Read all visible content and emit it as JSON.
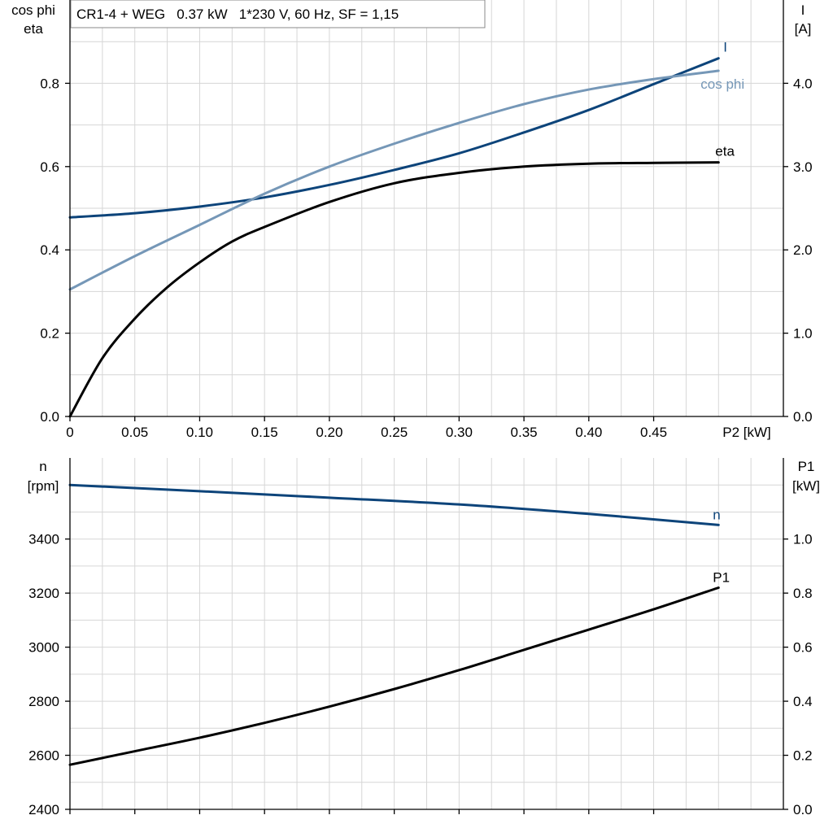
{
  "chart_data": [
    {
      "type": "line",
      "title": "CR1-4 + WEG   0.37 kW   1*230 V, 60 Hz, SF = 1,15",
      "xlabel": "P2 [kW]",
      "x_ticks": [
        "0",
        "0.05",
        "0.10",
        "0.15",
        "0.20",
        "0.25",
        "0.30",
        "0.35",
        "0.40",
        "0.45"
      ],
      "xlim": [
        0,
        0.55
      ],
      "y_left": {
        "label_line1": "cos phi",
        "label_line2": "eta",
        "lim": [
          0,
          1.0
        ],
        "ticks": [
          "0.0",
          "0.2",
          "0.4",
          "0.6",
          "0.8"
        ]
      },
      "y_right": {
        "label_line1": "I",
        "label_line2": "[A]",
        "lim": [
          0,
          5.0
        ],
        "ticks": [
          "0.0",
          "1.0",
          "2.0",
          "3.0",
          "4.0"
        ]
      },
      "grid": true,
      "series": [
        {
          "name": "I",
          "axis": "right",
          "color": "#0d447a",
          "x": [
            0,
            0.05,
            0.1,
            0.15,
            0.2,
            0.25,
            0.3,
            0.35,
            0.4,
            0.45,
            0.5
          ],
          "values": [
            2.39,
            2.44,
            2.52,
            2.63,
            2.78,
            2.96,
            3.16,
            3.41,
            3.68,
            3.99,
            4.3
          ]
        },
        {
          "name": "cos phi",
          "axis": "left",
          "color": "#7597b7",
          "x": [
            0,
            0.05,
            0.1,
            0.15,
            0.2,
            0.25,
            0.3,
            0.35,
            0.4,
            0.45,
            0.5
          ],
          "values": [
            0.305,
            0.385,
            0.46,
            0.535,
            0.6,
            0.655,
            0.705,
            0.75,
            0.785,
            0.81,
            0.83
          ]
        },
        {
          "name": "eta",
          "axis": "left",
          "color": "#000000",
          "x": [
            0,
            0.025,
            0.05,
            0.075,
            0.1,
            0.125,
            0.15,
            0.2,
            0.25,
            0.3,
            0.35,
            0.4,
            0.45,
            0.5
          ],
          "values": [
            0.0,
            0.14,
            0.235,
            0.31,
            0.37,
            0.42,
            0.455,
            0.515,
            0.56,
            0.585,
            0.6,
            0.607,
            0.609,
            0.61
          ]
        }
      ]
    },
    {
      "type": "line",
      "xlim": [
        0,
        0.55
      ],
      "y_left": {
        "label_line1": "n",
        "label_line2": "[rpm]",
        "lim": [
          2400,
          3700
        ],
        "ticks": [
          "2400",
          "2600",
          "2800",
          "3000",
          "3200",
          "3400"
        ]
      },
      "y_right": {
        "label_line1": "P1",
        "label_line2": "[kW]",
        "lim": [
          0,
          1.3
        ],
        "ticks": [
          "0.0",
          "0.2",
          "0.4",
          "0.6",
          "0.8",
          "1.0"
        ]
      },
      "grid": true,
      "series": [
        {
          "name": "n",
          "axis": "left",
          "color": "#0d447a",
          "x": [
            0,
            0.1,
            0.2,
            0.3,
            0.4,
            0.5
          ],
          "values": [
            3600,
            3577,
            3553,
            3528,
            3493,
            3452
          ]
        },
        {
          "name": "P1",
          "axis": "right",
          "color": "#000000",
          "x": [
            0,
            0.05,
            0.1,
            0.15,
            0.2,
            0.25,
            0.3,
            0.35,
            0.4,
            0.45,
            0.5
          ],
          "values": [
            0.165,
            0.215,
            0.265,
            0.32,
            0.38,
            0.445,
            0.515,
            0.59,
            0.665,
            0.74,
            0.82
          ]
        }
      ]
    }
  ]
}
